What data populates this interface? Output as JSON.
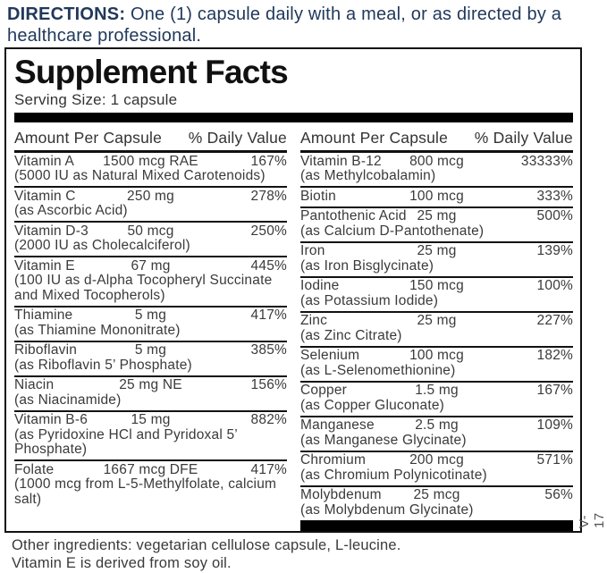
{
  "directions": {
    "label": "DIRECTIONS:",
    "text": " One (1) capsule daily with a meal, or as directed by a healthcare professional."
  },
  "panel": {
    "title": "Supplement Facts",
    "serving_size": "Serving Size: 1 capsule",
    "column_header": {
      "amount": "Amount Per Capsule",
      "daily_value": "% Daily Value"
    },
    "left_rows": [
      {
        "name": "Vitamin A",
        "amount": "1500 mcg RAE",
        "dv": "167%",
        "note": "(5000 IU as Natural Mixed Carotenoids)"
      },
      {
        "name": "Vitamin C",
        "amount": "250 mg",
        "dv": "278%",
        "note": "(as Ascorbic Acid)"
      },
      {
        "name": "Vitamin D-3",
        "amount": "50 mcg",
        "dv": "250%",
        "note": "(2000 IU as Cholecalciferol)"
      },
      {
        "name": "Vitamin E",
        "amount": "67 mg",
        "dv": "445%",
        "note": "(100 IU as d-Alpha Tocopheryl Succinate and Mixed Tocopherols)"
      },
      {
        "name": "Thiamine",
        "amount": "5 mg",
        "dv": "417%",
        "note": "(as Thiamine Mononitrate)"
      },
      {
        "name": "Riboflavin",
        "amount": "5 mg",
        "dv": "385%",
        "note": "(as Riboflavin 5’ Phosphate)"
      },
      {
        "name": "Niacin",
        "amount": "25 mg NE",
        "dv": "156%",
        "note": "(as Niacinamide)"
      },
      {
        "name": "Vitamin B-6",
        "amount": "15 mg",
        "dv": "882%",
        "note": "(as Pyridoxine HCl and Pyridoxal 5’ Phosphate)"
      },
      {
        "name": "Folate",
        "amount": "1667 mcg DFE",
        "dv": "417%",
        "note": "(1000 mcg from L-5-Methylfolate, calcium salt)"
      }
    ],
    "right_rows": [
      {
        "name": "Vitamin B-12",
        "amount": "800 mcg",
        "dv": "33333%",
        "note": "(as Methylcobalamin)"
      },
      {
        "name": "Biotin",
        "amount": "100 mcg",
        "dv": "333%",
        "note": ""
      },
      {
        "name": "Pantothenic Acid",
        "amount": "25 mg",
        "dv": "500%",
        "note": "(as Calcium D-Pantothenate)"
      },
      {
        "name": "Iron",
        "amount": "25 mg",
        "dv": "139%",
        "note": "(as Iron Bisglycinate)"
      },
      {
        "name": "Iodine",
        "amount": "150 mcg",
        "dv": "100%",
        "note": "(as Potassium Iodide)"
      },
      {
        "name": "Zinc",
        "amount": "25 mg",
        "dv": "227%",
        "note": "(as Zinc Citrate)"
      },
      {
        "name": "Selenium",
        "amount": "100 mcg",
        "dv": "182%",
        "note": "(as L-Selenomethionine)"
      },
      {
        "name": "Copper",
        "amount": "1.5 mg",
        "dv": "167%",
        "note": "(as Copper Gluconate)"
      },
      {
        "name": "Manganese",
        "amount": "2.5 mg",
        "dv": "109%",
        "note": "(as Manganese Glycinate)"
      },
      {
        "name": "Chromium",
        "amount": "200 mcg",
        "dv": "571%",
        "note": "(as Chromium Polynicotinate)"
      },
      {
        "name": "Molybdenum",
        "amount": "25 mcg",
        "dv": "56%",
        "note": "(as Molybdenum Glycinate)"
      }
    ]
  },
  "footer": {
    "line1": "Other ingredients: vegetarian cellulose capsule, L-leucine.",
    "line2": "Vitamin E is derived from soy oil."
  },
  "side_code": "V-17",
  "colors": {
    "directions_text": "#21395b",
    "body_text": "#3a3a3a",
    "rule_black": "#000000",
    "background": "#ffffff"
  }
}
